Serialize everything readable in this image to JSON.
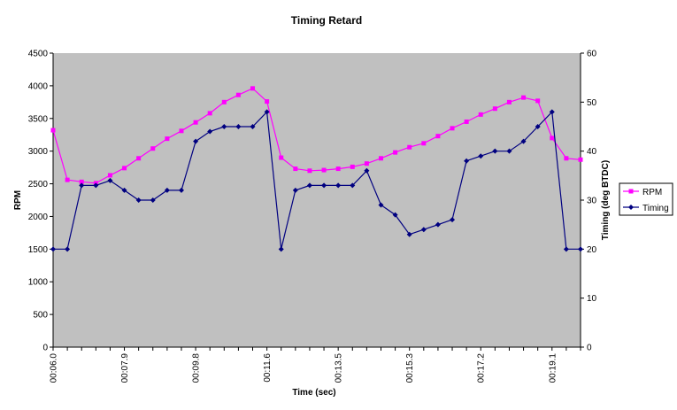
{
  "chart_data": {
    "type": "line",
    "title": "Timing Retard",
    "xlabel": "Time (sec)",
    "ylabel": "RPM",
    "y2label": "Timing (deg BTDC)",
    "x_tick_labels": [
      "00:06.0",
      "00:07.9",
      "00:09.8",
      "00:11.6",
      "00:13.5",
      "00:15.3",
      "00:17.2",
      "00:19.1"
    ],
    "x_tick_every": 5,
    "ylim": [
      0,
      4500
    ],
    "yticks": [
      0,
      500,
      1000,
      1500,
      2000,
      2500,
      3000,
      3500,
      4000,
      4500
    ],
    "y2lim": [
      0,
      60
    ],
    "y2ticks": [
      0,
      10,
      20,
      30,
      40,
      50,
      60
    ],
    "grid": false,
    "legend_position": "right",
    "series": [
      {
        "name": "RPM",
        "axis": "left",
        "color": "#FF00FF",
        "marker": "square",
        "values": [
          3320,
          2560,
          2530,
          2510,
          2630,
          2740,
          2890,
          3040,
          3190,
          3310,
          3440,
          3580,
          3750,
          3860,
          3960,
          3760,
          2900,
          2730,
          2700,
          2710,
          2730,
          2760,
          2810,
          2890,
          2980,
          3060,
          3120,
          3230,
          3350,
          3450,
          3560,
          3650,
          3750,
          3820,
          3770,
          3200,
          2890,
          2870
        ]
      },
      {
        "name": "Timing",
        "axis": "right",
        "color": "#000080",
        "marker": "diamond",
        "values": [
          20,
          20,
          33,
          33,
          34,
          32,
          30,
          30,
          32,
          32,
          42,
          44,
          45,
          45,
          45,
          48,
          20,
          32,
          33,
          33,
          33,
          33,
          36,
          29,
          27,
          23,
          24,
          25,
          26,
          38,
          39,
          40,
          40,
          42,
          45,
          48,
          20,
          20
        ]
      }
    ]
  }
}
